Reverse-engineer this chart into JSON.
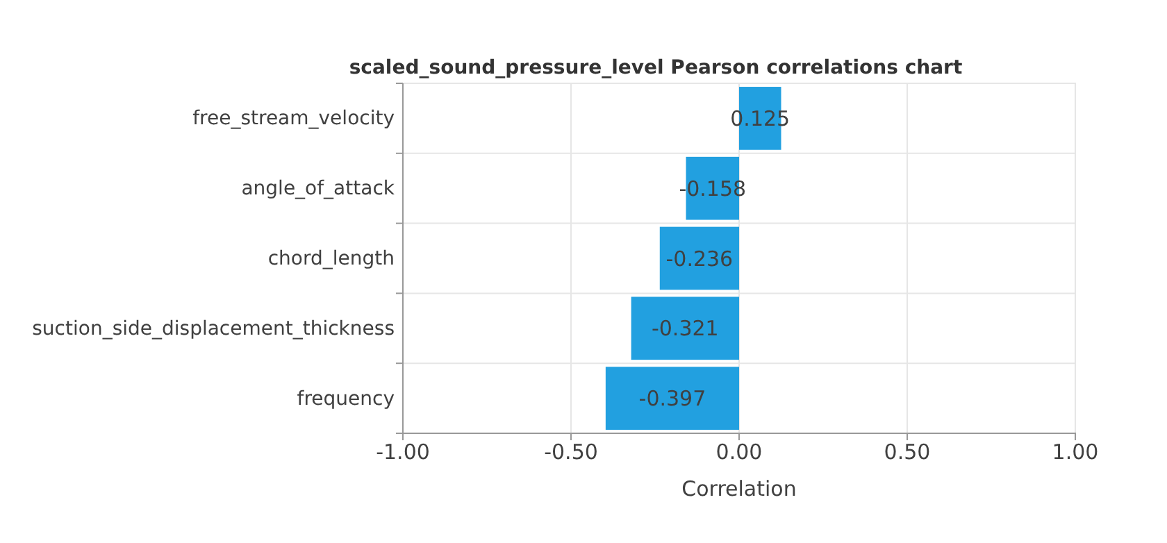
{
  "chart_data": {
    "type": "bar",
    "orientation": "horizontal",
    "title": "scaled_sound_pressure_level Pearson correlations chart",
    "xlabel": "Correlation",
    "categories": [
      "free_stream_velocity",
      "angle_of_attack",
      "chord_length",
      "suction_side_displacement_thickness",
      "frequency"
    ],
    "values": [
      0.125,
      -0.158,
      -0.236,
      -0.321,
      -0.397
    ],
    "color": "#22a0e0",
    "data_labels": true,
    "xlim": [
      -1,
      1
    ],
    "xticks": [
      {
        "value": -1,
        "label": "-1.00"
      },
      {
        "value": -0.5,
        "label": "-0.50"
      },
      {
        "value": 0,
        "label": "0.00"
      },
      {
        "value": 0.5,
        "label": "0.50"
      },
      {
        "value": 1,
        "label": "1.00"
      }
    ],
    "grid": true
  }
}
